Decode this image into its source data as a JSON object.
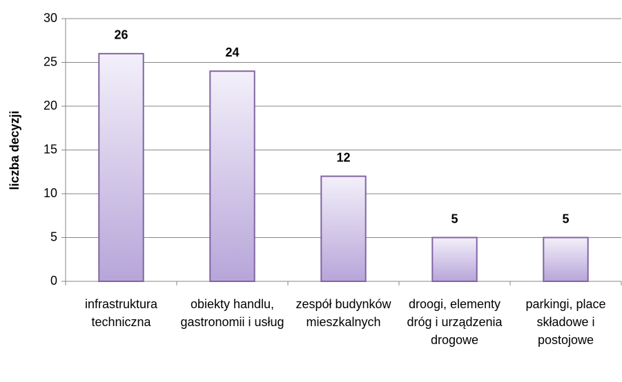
{
  "chart_data": {
    "type": "bar",
    "y_label": "liczba decyzji",
    "categories": [
      "infrastruktura techniczna",
      "obiekty handlu, gastronomii i usług",
      "zespół budynków mieszkalnych",
      "droogi, elementy dróg i urządzenia drogowe",
      "parkingi, place składowe i postojowe"
    ],
    "values": [
      26,
      24,
      12,
      5,
      5
    ],
    "color": "#8064a2",
    "ylim": [
      0,
      30
    ],
    "yticks": [
      0,
      5,
      10,
      15,
      20,
      25,
      30
    ],
    "grid": true
  }
}
